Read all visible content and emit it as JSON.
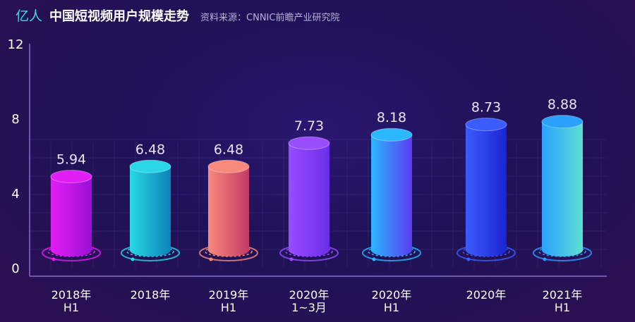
{
  "header": {
    "unit": "亿人",
    "title": "中国短视频用户规模走势",
    "source": "资料来源：CNNIC前瞻产业研究院"
  },
  "chart_data": {
    "type": "bar",
    "title": "中国短视频用户规模走势",
    "ylabel": "亿人",
    "categories": [
      [
        "2018年",
        "H1"
      ],
      [
        "2018年",
        ""
      ],
      [
        "2019年",
        "H1"
      ],
      [
        "2020年",
        "1~3月"
      ],
      [
        "2020年",
        "H1"
      ],
      [
        "2020年",
        ""
      ],
      [
        "2021年",
        "H1"
      ]
    ],
    "values": [
      5.94,
      6.48,
      6.48,
      7.73,
      8.18,
      8.73,
      8.88
    ],
    "value_labels": [
      "5.94",
      "6.48",
      "6.48",
      "7.73",
      "8.18",
      "8.73",
      "8.88"
    ],
    "yticks": [
      "0",
      "4",
      "8",
      "12"
    ],
    "ylim": [
      0,
      12
    ],
    "grid": true,
    "bar_colors": [
      [
        "#e21ef5",
        "#9a10d6"
      ],
      [
        "#29d8e6",
        "#0c82b8"
      ],
      [
        "#f88a7c",
        "#c23a66"
      ],
      [
        "#9a4cff",
        "#6a2ee8"
      ],
      [
        "#2bb8ff",
        "#5a3cf0"
      ],
      [
        "#3b5cff",
        "#1a24d0"
      ],
      [
        "#2aa0ff",
        "#5de0d0"
      ]
    ]
  }
}
